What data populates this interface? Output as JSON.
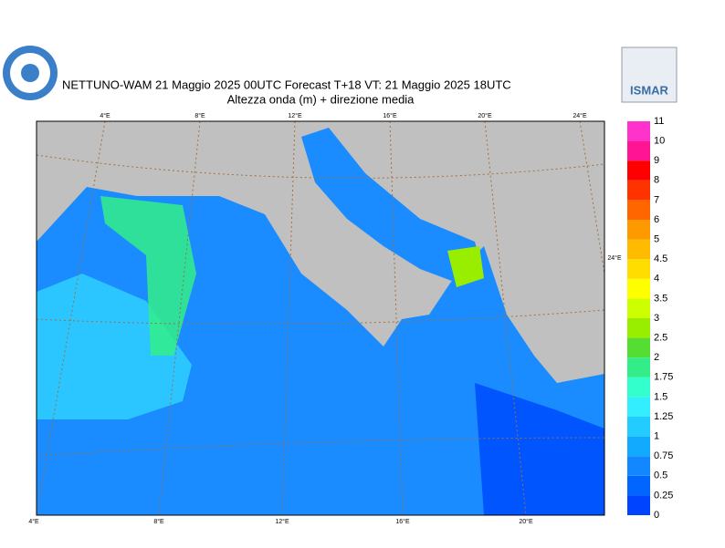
{
  "header": {
    "title": "NETTUNO-WAM  21   Maggio  2025 00UTC Forecast T+18 VT: 21   Maggio  2025 18UTC",
    "subtitle": "Altezza onda (m) + direzione media",
    "logo": "ISMAR"
  },
  "map": {
    "top_labels": [
      "4°E",
      "8°E",
      "12°E",
      "16°E",
      "20°E",
      "24°E"
    ],
    "bottom_labels": [
      "4°E",
      "8°E",
      "12°E",
      "16°E",
      "20°E"
    ],
    "right_label": "24°E"
  },
  "colorbar": {
    "levels": [
      0,
      0.25,
      0.5,
      0.75,
      1,
      1.25,
      1.5,
      1.75,
      2,
      2.5,
      3,
      3.5,
      4,
      4.5,
      5,
      6,
      7,
      8,
      9,
      10,
      11
    ],
    "colors": [
      "#0044ff",
      "#0066ff",
      "#1188ff",
      "#11aaff",
      "#22ccff",
      "#33eeff",
      "#33ffcc",
      "#33ee88",
      "#55dd33",
      "#99ee00",
      "#ccff00",
      "#ffff00",
      "#ffdd00",
      "#ffbb00",
      "#ff9900",
      "#ff6600",
      "#ff3300",
      "#ff0000",
      "#ff1493",
      "#ff33cc"
    ]
  }
}
